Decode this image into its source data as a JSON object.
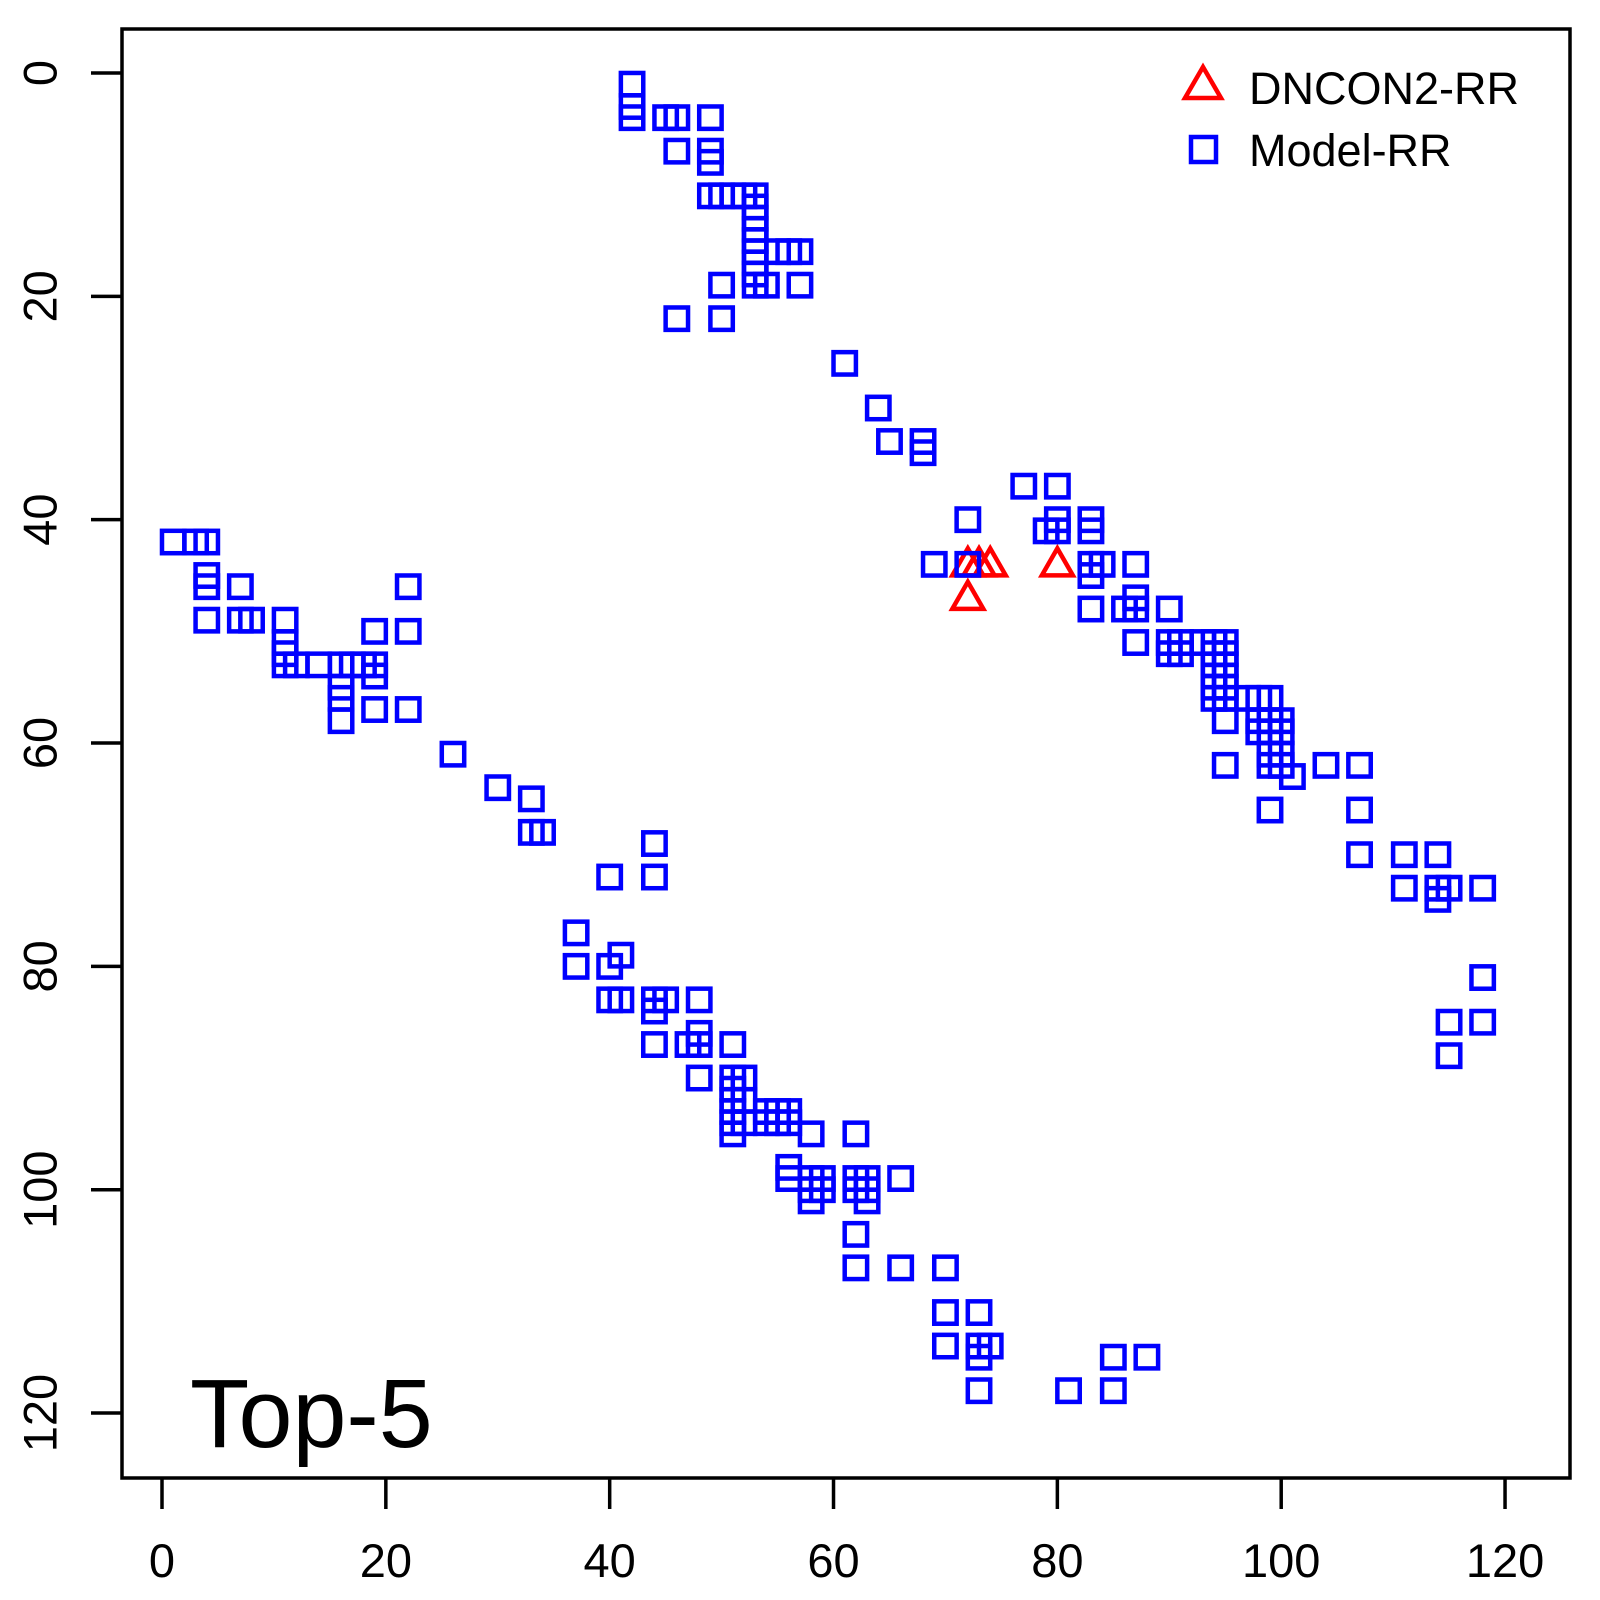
{
  "figure": {
    "annotation": "Top-5",
    "background": "#ffffff",
    "border_color": "#000000"
  },
  "legend": {
    "position": "top-right",
    "items": [
      {
        "label": "DNCON2-RR",
        "marker": "triangle-icon",
        "color": "#FF0000"
      },
      {
        "label": "Model-RR",
        "marker": "square-icon",
        "color": "#0000FF"
      }
    ]
  },
  "chart_data": {
    "type": "scatter",
    "title": "",
    "xlabel": "",
    "ylabel": "",
    "annotation": "Top-5",
    "grid": false,
    "x_ticks": [
      0,
      20,
      40,
      60,
      80,
      100,
      120
    ],
    "y_ticks": [
      0,
      20,
      40,
      60,
      80,
      100,
      120
    ],
    "xlim": [
      -3.5,
      126
    ],
    "ylim": [
      -3.8,
      125.8
    ],
    "y_axis_inverted": true,
    "legend_position": "top-right",
    "series": [
      {
        "name": "DNCON2-RR",
        "marker": "triangle",
        "color": "#FF0000",
        "points": [
          [
            72,
            44
          ],
          [
            73,
            44
          ],
          [
            74,
            44
          ],
          [
            80,
            44
          ],
          [
            72,
            47
          ]
        ]
      },
      {
        "name": "Model-RR",
        "marker": "square",
        "color": "#0000FF",
        "points": [
          [
            42,
            1
          ],
          [
            42,
            3
          ],
          [
            42,
            4
          ],
          [
            45,
            4
          ],
          [
            46,
            4
          ],
          [
            49,
            4
          ],
          [
            46,
            7
          ],
          [
            49,
            7
          ],
          [
            49,
            8
          ],
          [
            49,
            11
          ],
          [
            50,
            11
          ],
          [
            51,
            11
          ],
          [
            52,
            11
          ],
          [
            53,
            11
          ],
          [
            53,
            12
          ],
          [
            53,
            13
          ],
          [
            53,
            14
          ],
          [
            53,
            15
          ],
          [
            53,
            16
          ],
          [
            53,
            17
          ],
          [
            53,
            18
          ],
          [
            55,
            16
          ],
          [
            56,
            16
          ],
          [
            57,
            16
          ],
          [
            50,
            19
          ],
          [
            53,
            19
          ],
          [
            54,
            19
          ],
          [
            57,
            19
          ],
          [
            46,
            22
          ],
          [
            50,
            22
          ],
          [
            61,
            26
          ],
          [
            64,
            30
          ],
          [
            65,
            33
          ],
          [
            68,
            33
          ],
          [
            68,
            34
          ],
          [
            77,
            37
          ],
          [
            80,
            37
          ],
          [
            72,
            40
          ],
          [
            80,
            40
          ],
          [
            79,
            41
          ],
          [
            80,
            41
          ],
          [
            83,
            40
          ],
          [
            83,
            41
          ],
          [
            69,
            44
          ],
          [
            72,
            44
          ],
          [
            83,
            44
          ],
          [
            84,
            44
          ],
          [
            83,
            45
          ],
          [
            87,
            44
          ],
          [
            87,
            47
          ],
          [
            83,
            48
          ],
          [
            86,
            48
          ],
          [
            87,
            48
          ],
          [
            90,
            48
          ],
          [
            87,
            51
          ],
          [
            90,
            51
          ],
          [
            91,
            51
          ],
          [
            90,
            52
          ],
          [
            91,
            52
          ],
          [
            93,
            51
          ],
          [
            94,
            51
          ],
          [
            95,
            51
          ],
          [
            94,
            52
          ],
          [
            95,
            52
          ],
          [
            94,
            53
          ],
          [
            95,
            53
          ],
          [
            94,
            54
          ],
          [
            95,
            54
          ],
          [
            94,
            55
          ],
          [
            95,
            55
          ],
          [
            94,
            56
          ],
          [
            95,
            56
          ],
          [
            97,
            56
          ],
          [
            98,
            56
          ],
          [
            99,
            56
          ],
          [
            98,
            58
          ],
          [
            99,
            58
          ],
          [
            100,
            58
          ],
          [
            98,
            59
          ],
          [
            99,
            59
          ],
          [
            100,
            59
          ],
          [
            95,
            58
          ],
          [
            95,
            62
          ],
          [
            99,
            61
          ],
          [
            100,
            61
          ],
          [
            99,
            62
          ],
          [
            100,
            62
          ],
          [
            101,
            63
          ],
          [
            104,
            62
          ],
          [
            107,
            62
          ],
          [
            99,
            66
          ],
          [
            107,
            66
          ],
          [
            107,
            70
          ],
          [
            111,
            70
          ],
          [
            114,
            70
          ],
          [
            111,
            73
          ],
          [
            114,
            73
          ],
          [
            115,
            73
          ],
          [
            114,
            74
          ],
          [
            118,
            73
          ],
          [
            118,
            81
          ],
          [
            115,
            85
          ],
          [
            118,
            85
          ],
          [
            115,
            88
          ],
          [
            1,
            42
          ],
          [
            3,
            42
          ],
          [
            4,
            42
          ],
          [
            4,
            45
          ],
          [
            4,
            46
          ],
          [
            7,
            46
          ],
          [
            4,
            49
          ],
          [
            7,
            49
          ],
          [
            8,
            49
          ],
          [
            22,
            46
          ],
          [
            11,
            49
          ],
          [
            11,
            51
          ],
          [
            11,
            52
          ],
          [
            11,
            53
          ],
          [
            19,
            50
          ],
          [
            22,
            50
          ],
          [
            12,
            53
          ],
          [
            14,
            53
          ],
          [
            16,
            53
          ],
          [
            17,
            53
          ],
          [
            18,
            53
          ],
          [
            19,
            53
          ],
          [
            19,
            54
          ],
          [
            16,
            55
          ],
          [
            16,
            56
          ],
          [
            16,
            58
          ],
          [
            19,
            57
          ],
          [
            22,
            57
          ],
          [
            26,
            61
          ],
          [
            30,
            64
          ],
          [
            33,
            65
          ],
          [
            33,
            68
          ],
          [
            34,
            68
          ],
          [
            44,
            69
          ],
          [
            40,
            72
          ],
          [
            44,
            72
          ],
          [
            37,
            77
          ],
          [
            37,
            80
          ],
          [
            41,
            79
          ],
          [
            40,
            80
          ],
          [
            40,
            83
          ],
          [
            41,
            83
          ],
          [
            44,
            83
          ],
          [
            45,
            83
          ],
          [
            48,
            83
          ],
          [
            44,
            84
          ],
          [
            44,
            87
          ],
          [
            47,
            87
          ],
          [
            48,
            86
          ],
          [
            48,
            87
          ],
          [
            51,
            87
          ],
          [
            48,
            90
          ],
          [
            51,
            90
          ],
          [
            52,
            90
          ],
          [
            51,
            91
          ],
          [
            51,
            92
          ],
          [
            52,
            92
          ],
          [
            51,
            93
          ],
          [
            51,
            94
          ],
          [
            52,
            94
          ],
          [
            51,
            95
          ],
          [
            54,
            93
          ],
          [
            55,
            93
          ],
          [
            56,
            93
          ],
          [
            54,
            94
          ],
          [
            55,
            94
          ],
          [
            56,
            94
          ],
          [
            58,
            95
          ],
          [
            62,
            95
          ],
          [
            56,
            98
          ],
          [
            56,
            99
          ],
          [
            58,
            99
          ],
          [
            59,
            99
          ],
          [
            58,
            100
          ],
          [
            59,
            100
          ],
          [
            58,
            101
          ],
          [
            62,
            99
          ],
          [
            63,
            99
          ],
          [
            62,
            100
          ],
          [
            63,
            100
          ],
          [
            63,
            101
          ],
          [
            66,
            99
          ],
          [
            62,
            104
          ],
          [
            62,
            107
          ],
          [
            66,
            107
          ],
          [
            70,
            107
          ],
          [
            70,
            111
          ],
          [
            73,
            111
          ],
          [
            70,
            114
          ],
          [
            73,
            114
          ],
          [
            74,
            114
          ],
          [
            73,
            115
          ],
          [
            73,
            118
          ],
          [
            81,
            118
          ],
          [
            85,
            118
          ],
          [
            85,
            115
          ],
          [
            88,
            115
          ]
        ]
      }
    ]
  }
}
